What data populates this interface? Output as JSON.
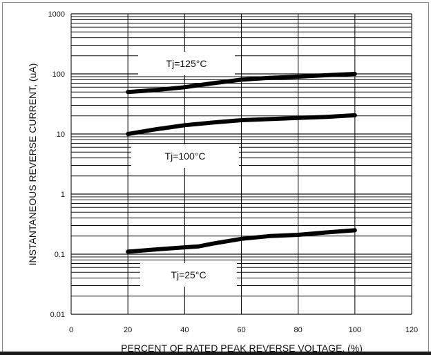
{
  "chart_data": {
    "type": "line",
    "xlabel": "PERCENT OF RATED PEAK REVERSE VOLTAGE, (%)",
    "ylabel": "INSTANTANEOUS REVERSE CURRENT, (uA)",
    "xlim": [
      0,
      120
    ],
    "ylim": [
      0.01,
      1000
    ],
    "yscale": "log",
    "grid": true,
    "x_ticks": [
      "0",
      "20",
      "40",
      "60",
      "80",
      "100",
      "120"
    ],
    "y_ticks": [
      "0.01",
      "0.1",
      "1",
      "10",
      "100",
      "1000"
    ],
    "series": [
      {
        "name": "Tj=125°C",
        "x": [
          20,
          30,
          40,
          45,
          50,
          60,
          70,
          80,
          90,
          100
        ],
        "values": [
          50,
          54,
          60,
          65,
          70,
          80,
          86,
          90,
          95,
          100
        ]
      },
      {
        "name": "Tj=100°C",
        "x": [
          20,
          30,
          40,
          50,
          60,
          70,
          80,
          90,
          100
        ],
        "values": [
          10,
          12,
          14,
          15.5,
          17,
          17.7,
          18.5,
          19.3,
          20.5
        ]
      },
      {
        "name": "Tj=25°C",
        "x": [
          20,
          30,
          40,
          45,
          50,
          60,
          70,
          80,
          90,
          100
        ],
        "values": [
          0.11,
          0.12,
          0.13,
          0.135,
          0.15,
          0.18,
          0.2,
          0.21,
          0.23,
          0.25
        ]
      }
    ]
  }
}
